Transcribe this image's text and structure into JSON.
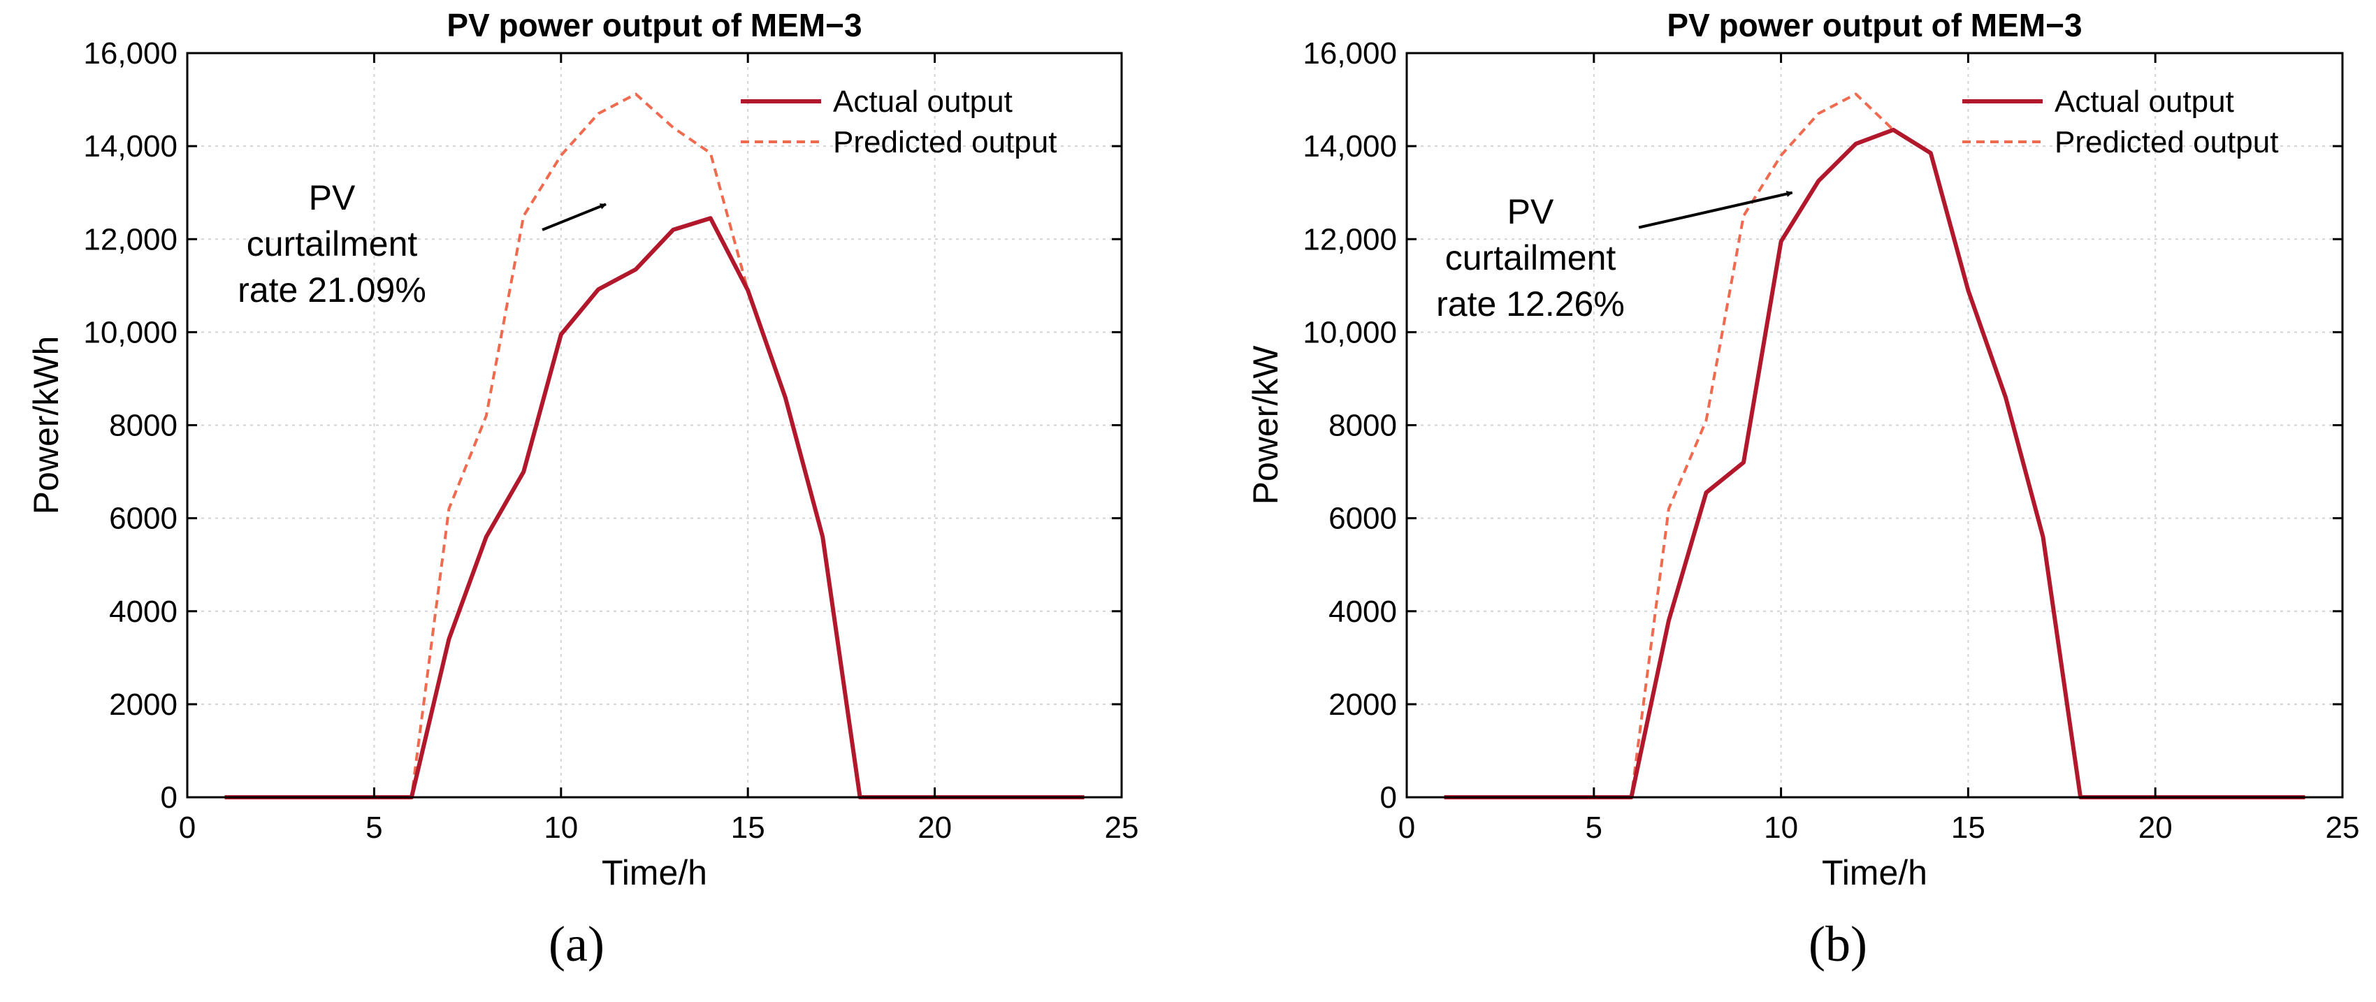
{
  "colors": {
    "actual": "#B2182B",
    "predicted": "#EF6B4F",
    "axis": "#000000",
    "grid": "#D3D3D3"
  },
  "chart_data": [
    {
      "type": "line",
      "panel_label": "(a)",
      "title": "PV power output of MEM−3",
      "xlabel": "Time/h",
      "ylabel": "Power/kWh",
      "xlim": [
        0,
        25
      ],
      "ylim": [
        0,
        16000
      ],
      "xticks": [
        0,
        5,
        10,
        15,
        20,
        25
      ],
      "xtick_labels": [
        "0",
        "5",
        "10",
        "15",
        "20",
        "25"
      ],
      "yticks": [
        0,
        2000,
        4000,
        6000,
        8000,
        10000,
        12000,
        14000,
        16000
      ],
      "ytick_labels": [
        "0",
        "2000",
        "4000",
        "6000",
        "8000",
        "10,000",
        "12,000",
        "14,000",
        "16,000"
      ],
      "grid": true,
      "legend_position": "top-right",
      "x": [
        1,
        2,
        3,
        4,
        5,
        6,
        7,
        8,
        9,
        10,
        11,
        12,
        13,
        14,
        15,
        16,
        17,
        18,
        19,
        20,
        21,
        22,
        23,
        24
      ],
      "series": [
        {
          "name": "Actual output",
          "style": "solid",
          "values": [
            0,
            0,
            0,
            0,
            0,
            0,
            3400,
            5600,
            7000,
            9950,
            10920,
            11350,
            12200,
            12450,
            10900,
            8600,
            5600,
            0,
            0,
            0,
            0,
            0,
            0,
            0
          ]
        },
        {
          "name": "Predicted output",
          "style": "dashed",
          "values": [
            0,
            0,
            0,
            0,
            0,
            0,
            6200,
            8200,
            12500,
            13800,
            14700,
            15120,
            14400,
            13850,
            10900,
            8600,
            5600,
            0,
            0,
            0,
            0,
            0,
            0,
            0
          ]
        }
      ],
      "annotation": {
        "lines": [
          "PV",
          "curtailment",
          "rate 21.09%"
        ],
        "arrow_from": [
          9.5,
          12200
        ],
        "arrow_to": [
          11.2,
          12750
        ]
      }
    },
    {
      "type": "line",
      "panel_label": "(b)",
      "title": "PV power output of MEM−3",
      "xlabel": "Time/h",
      "ylabel": "Power/kW",
      "xlim": [
        0,
        25
      ],
      "ylim": [
        0,
        16000
      ],
      "xticks": [
        0,
        5,
        10,
        15,
        20,
        25
      ],
      "xtick_labels": [
        "0",
        "5",
        "10",
        "15",
        "20",
        "25"
      ],
      "yticks": [
        0,
        2000,
        4000,
        6000,
        8000,
        10000,
        12000,
        14000,
        16000
      ],
      "ytick_labels": [
        "0",
        "2000",
        "4000",
        "6000",
        "8000",
        "10,000",
        "12,000",
        "14,000",
        "16,000"
      ],
      "grid": true,
      "legend_position": "top-right",
      "x": [
        1,
        2,
        3,
        4,
        5,
        6,
        7,
        8,
        9,
        10,
        11,
        12,
        13,
        14,
        15,
        16,
        17,
        18,
        19,
        20,
        21,
        22,
        23,
        24
      ],
      "series": [
        {
          "name": "Actual output",
          "style": "solid",
          "values": [
            0,
            0,
            0,
            0,
            0,
            0,
            3800,
            6550,
            7200,
            11950,
            13250,
            14050,
            14350,
            13850,
            10900,
            8600,
            5600,
            0,
            0,
            0,
            0,
            0,
            0,
            0
          ]
        },
        {
          "name": "Predicted output",
          "style": "dashed",
          "values": [
            0,
            0,
            0,
            0,
            0,
            0,
            6200,
            8100,
            12500,
            13800,
            14700,
            15120,
            14350,
            13850,
            10900,
            8600,
            5600,
            0,
            0,
            0,
            0,
            0,
            0,
            0
          ]
        }
      ],
      "annotation": {
        "lines": [
          "PV",
          "curtailment",
          "rate 12.26%"
        ],
        "arrow_from": [
          6.2,
          12250
        ],
        "arrow_to": [
          10.3,
          13000
        ]
      }
    }
  ]
}
